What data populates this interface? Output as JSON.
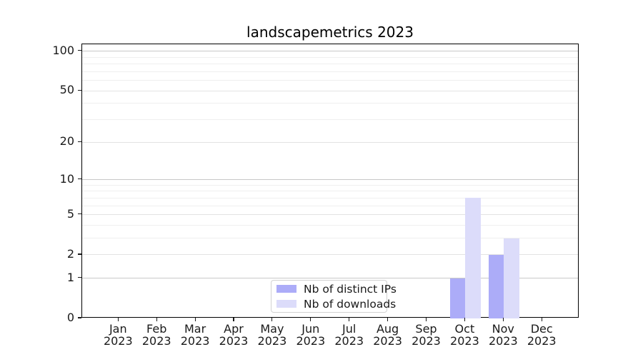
{
  "title": "landscapemetrics 2023",
  "chart_data": {
    "type": "bar",
    "title": "landscapemetrics 2023",
    "categories": [
      "Jan 2023",
      "Feb 2023",
      "Mar 2023",
      "Apr 2023",
      "May 2023",
      "Jun 2023",
      "Jul 2023",
      "Aug 2023",
      "Sep 2023",
      "Oct 2023",
      "Nov 2023",
      "Dec 2023"
    ],
    "series": [
      {
        "name": "Nb of distinct IPs",
        "color": "#acacf8",
        "values": [
          0,
          0,
          0,
          0,
          0,
          0,
          0,
          0,
          0,
          1,
          2,
          0
        ]
      },
      {
        "name": "Nb of downloads",
        "color": "#dcdcfa",
        "values": [
          0,
          0,
          0,
          0,
          0,
          0,
          0,
          0,
          0,
          7,
          3,
          0
        ]
      }
    ],
    "xlabel": "",
    "ylabel": "",
    "yscale": "log1p",
    "ylim": [
      0,
      113
    ],
    "yticks": [
      0,
      1,
      2,
      5,
      10,
      20,
      50,
      100
    ],
    "yticks_minor": [
      3,
      4,
      6,
      7,
      8,
      9,
      30,
      40,
      60,
      70,
      80,
      90
    ],
    "grid": "horizontal",
    "legend_position": "inside-bottom-center",
    "colors": {
      "grid_major_decade": "#c8c8c8",
      "grid_major_other": "#e3e3e3",
      "grid_minor": "#efefef",
      "axis": "#000000"
    }
  }
}
